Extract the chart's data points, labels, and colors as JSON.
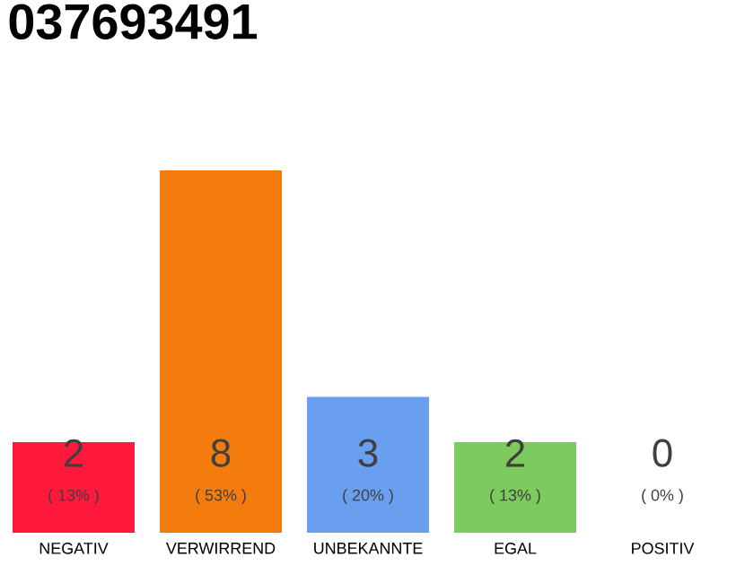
{
  "chart_data": {
    "type": "bar",
    "title": "037693491",
    "categories": [
      "NEGATIV",
      "VERWIRREND",
      "UNBEKANNTE",
      "EGAL",
      "POSITIV"
    ],
    "values": [
      2,
      8,
      3,
      2,
      0
    ],
    "colors": [
      "#ff1a3c",
      "#f47c0f",
      "#6a9ff0",
      "#7dcb5f",
      "#aaaaaa"
    ],
    "ylim": [
      0,
      8
    ],
    "tick_labels": "x",
    "data_labels": true,
    "annotations": [
      "( 13% )",
      "( 53% )",
      "( 20% )",
      "( 13% )",
      "( 0% )"
    ]
  }
}
